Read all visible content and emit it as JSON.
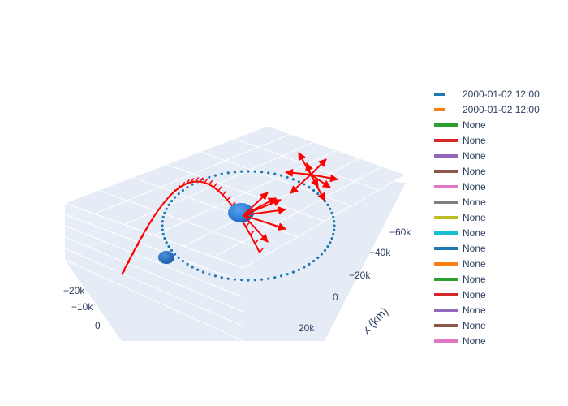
{
  "chart_data": {
    "type": "scatter",
    "subtype": "3d-orbit-with-vectors",
    "title": "",
    "axes": {
      "x": {
        "label": "x (km)",
        "ticks": [
          "−60k",
          "−40k",
          "−20k",
          "0",
          "20k"
        ]
      },
      "y": {
        "label": "",
        "ticks": [
          "−20k",
          "−10k",
          "0"
        ]
      }
    },
    "grid": true,
    "legend_position": "right",
    "legend": [
      {
        "name": "2000-01-02 12:00",
        "color": "#1f77b4",
        "dash": true
      },
      {
        "name": "2000-01-02 12:00",
        "color": "#ff7f0e",
        "dash": true
      },
      {
        "name": "None",
        "color": "#2ca02c"
      },
      {
        "name": "None",
        "color": "#d62728"
      },
      {
        "name": "None",
        "color": "#9467bd"
      },
      {
        "name": "None",
        "color": "#8c564b"
      },
      {
        "name": "None",
        "color": "#e377c2"
      },
      {
        "name": "None",
        "color": "#7f7f7f"
      },
      {
        "name": "None",
        "color": "#bcbd22"
      },
      {
        "name": "None",
        "color": "#17becf"
      },
      {
        "name": "None",
        "color": "#1f77b4"
      },
      {
        "name": "None",
        "color": "#ff7f0e"
      },
      {
        "name": "None",
        "color": "#2ca02c"
      },
      {
        "name": "None",
        "color": "#d62728"
      },
      {
        "name": "None",
        "color": "#9467bd"
      },
      {
        "name": "None",
        "color": "#8c564b"
      },
      {
        "name": "None",
        "color": "#e377c2"
      }
    ],
    "colors": {
      "orbit": "#1f77b4",
      "vectors": "#ff0000",
      "body": "#2b7bd6",
      "grid": "#ffffff",
      "pane": "#e5ecf6",
      "text": "#2a3f5f"
    }
  }
}
